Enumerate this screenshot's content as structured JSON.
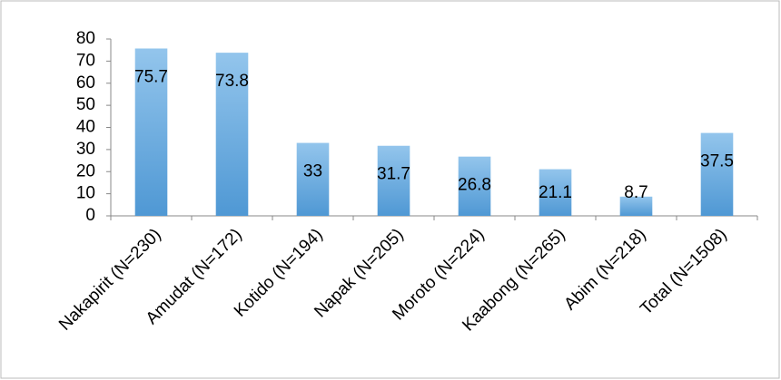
{
  "chart_data": {
    "type": "bar",
    "categories": [
      "Nakapirit (N=230)",
      "Amudat (N=172)",
      "Kotido (N=194)",
      "Napak (N=205)",
      "Moroto (N=224)",
      "Kaabong (N=265)",
      "Abim (N=218)",
      "Total (N=1508)"
    ],
    "values": [
      75.7,
      73.8,
      33,
      31.7,
      26.8,
      21.1,
      8.7,
      37.5
    ],
    "color": "#5ea6e0",
    "ylim": [
      0,
      80
    ],
    "yticks": [
      0,
      10,
      20,
      30,
      40,
      50,
      60,
      70,
      80
    ],
    "grid": false
  }
}
